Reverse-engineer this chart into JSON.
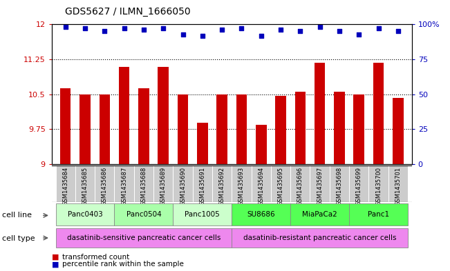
{
  "title": "GDS5627 / ILMN_1666050",
  "samples": [
    "GSM1435684",
    "GSM1435685",
    "GSM1435686",
    "GSM1435687",
    "GSM1435688",
    "GSM1435689",
    "GSM1435690",
    "GSM1435691",
    "GSM1435692",
    "GSM1435693",
    "GSM1435694",
    "GSM1435695",
    "GSM1435696",
    "GSM1435697",
    "GSM1435698",
    "GSM1435699",
    "GSM1435700",
    "GSM1435701"
  ],
  "transformed_counts": [
    10.62,
    10.5,
    10.5,
    11.08,
    10.62,
    11.08,
    10.5,
    9.88,
    10.5,
    10.5,
    9.84,
    10.47,
    10.55,
    11.18,
    10.55,
    10.5,
    11.18,
    10.42
  ],
  "percentile_ranks": [
    98,
    97,
    95,
    97,
    96,
    97,
    93,
    92,
    96,
    97,
    92,
    96,
    95,
    98,
    95,
    93,
    97,
    95
  ],
  "ylim_left": [
    9.0,
    12.0
  ],
  "yticks_left": [
    9.0,
    9.75,
    10.5,
    11.25,
    12.0
  ],
  "ytick_labels_left": [
    "9",
    "9.75",
    "10.5",
    "11.25",
    "12"
  ],
  "yticks_right": [
    0,
    25,
    50,
    75,
    100
  ],
  "ytick_labels_right": [
    "0",
    "25",
    "50",
    "75",
    "100%"
  ],
  "ylim_right": [
    0,
    100
  ],
  "bar_color": "#cc0000",
  "dot_color": "#0000bb",
  "dot_size": 20,
  "bar_width": 0.55,
  "baseline": 9.0,
  "grid_lines": [
    9.75,
    10.5,
    11.25
  ],
  "cell_lines": [
    {
      "name": "Panc0403",
      "start": 0,
      "end": 2,
      "color": "#ccffcc"
    },
    {
      "name": "Panc0504",
      "start": 3,
      "end": 5,
      "color": "#aaffaa"
    },
    {
      "name": "Panc1005",
      "start": 6,
      "end": 8,
      "color": "#ccffcc"
    },
    {
      "name": "SU8686",
      "start": 9,
      "end": 11,
      "color": "#55ff55"
    },
    {
      "name": "MiaPaCa2",
      "start": 12,
      "end": 14,
      "color": "#55ff55"
    },
    {
      "name": "Panc1",
      "start": 15,
      "end": 17,
      "color": "#55ff55"
    }
  ],
  "cell_types": [
    {
      "name": "dasatinib-sensitive pancreatic cancer cells",
      "start": 0,
      "end": 8,
      "color": "#ee88ee"
    },
    {
      "name": "dasatinib-resistant pancreatic cancer cells",
      "start": 9,
      "end": 17,
      "color": "#ee88ee"
    }
  ],
  "legend_bar_label": "transformed count",
  "legend_dot_label": "percentile rank within the sample",
  "bar_label_color": "#cc0000",
  "dot_label_color": "#0000bb",
  "cell_line_row_label": "cell line",
  "cell_type_row_label": "cell type",
  "sample_bg_color": "#cccccc",
  "title_fontsize": 10,
  "axis_fontsize": 8,
  "sample_fontsize": 6,
  "cell_fontsize": 7.5,
  "legend_fontsize": 7.5
}
